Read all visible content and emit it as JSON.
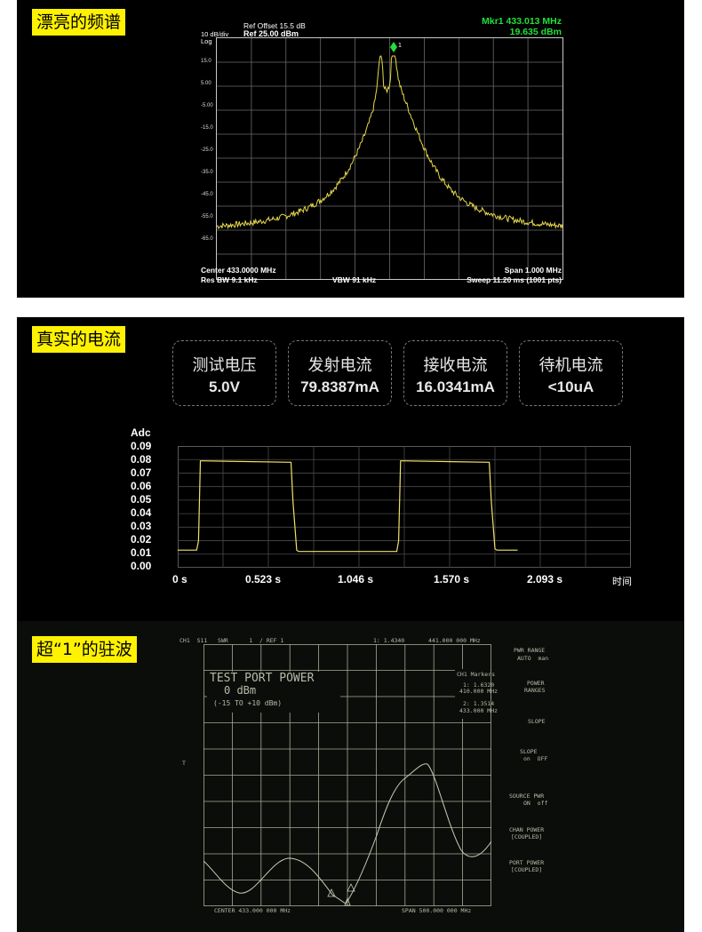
{
  "sections": {
    "spectrum_title": "漂亮的频谱",
    "current_title": "真实的电流",
    "swr_title": "超“1”的驻波"
  },
  "spectrum": {
    "ref_offset": "Ref Offset 15.5 dB",
    "ref": "Ref  25.00 dBm",
    "scale": "10 dB/div",
    "scale_type": "Log",
    "marker_label": "Mkr1 433.013 MHz",
    "marker_value": "19.635 dBm",
    "marker_id": "1",
    "center": "Center 433.0000 MHz",
    "span": "Span 1.000 MHz",
    "res_bw": "Res BW 9.1 kHz",
    "vbw": "VBW 91 kHz",
    "sweep": "Sweep  11.20 ms (1001 pts)",
    "y_ticks": [
      "15.0",
      "5.00",
      "-5.00",
      "-15.0",
      "-25.0",
      "-35.0",
      "-45.0",
      "-55.0",
      "-65.0"
    ],
    "colors": {
      "trace": "#e6d84a",
      "marker": "#22e03a"
    }
  },
  "cards": [
    {
      "label": "测试电压",
      "value": "5.0V"
    },
    {
      "label": "发射电流",
      "value": "79.8387mA"
    },
    {
      "label": "接收电流",
      "value": "16.0341mA"
    },
    {
      "label": "待机电流",
      "value": "<10uA"
    }
  ],
  "current_chart": {
    "ylabel": "Adc",
    "y_ticks": [
      "0.09",
      "0.08",
      "0.07",
      "0.06",
      "0.05",
      "0.04",
      "0.03",
      "0.02",
      "0.01",
      "0.00"
    ],
    "x_ticks": [
      "0 s",
      "0.523 s",
      "1.046 s",
      "1.570 s",
      "2.093 s"
    ],
    "xlabel": "时间"
  },
  "chart_data": {
    "type": "line",
    "title": "",
    "xlabel": "时间",
    "ylabel": "Adc",
    "xlim": [
      0,
      2.4
    ],
    "ylim": [
      0,
      0.09
    ],
    "grid": true,
    "series": [
      {
        "x": [
          0,
          0.1,
          0.11,
          0.12,
          0.13,
          0.6,
          0.61,
          0.63,
          0.64,
          1.16,
          1.17,
          1.18,
          1.19,
          1.65,
          1.66,
          1.68,
          1.69,
          1.8
        ],
        "values": [
          0.013,
          0.013,
          0.02,
          0.079,
          0.079,
          0.078,
          0.05,
          0.013,
          0.012,
          0.012,
          0.02,
          0.079,
          0.079,
          0.078,
          0.05,
          0.014,
          0.013,
          0.013
        ]
      }
    ]
  },
  "swr": {
    "header_left": "CH1  S11   SWR      1  / REF 1",
    "header_mid": "1: 1.4340",
    "header_freq": "441.000 000 MHz",
    "power_title": "TEST PORT POWER",
    "power_value": "0 dBm",
    "power_range": "(-15 TO +10 dBm)",
    "markers_title": "CH1 Markers",
    "marker1": "1: 1.6320",
    "marker1_freq": "410.000 MHz",
    "marker2": "2: 1.3514",
    "marker2_freq": "433.000 MHz",
    "center": "CENTER 433.000 000 MHz",
    "span": "SPAN 500.000 000 MHz",
    "softkeys": [
      "PWR RANGE",
      "AUTO  man",
      "POWER",
      "RANGES",
      "SLOPE",
      "SLOPE",
      "on  OFF",
      "SOURCE PWR",
      "ON  off",
      "CHAN POWER",
      "[COUPLED]",
      "PORT POWER",
      "[COUPLED]"
    ]
  }
}
